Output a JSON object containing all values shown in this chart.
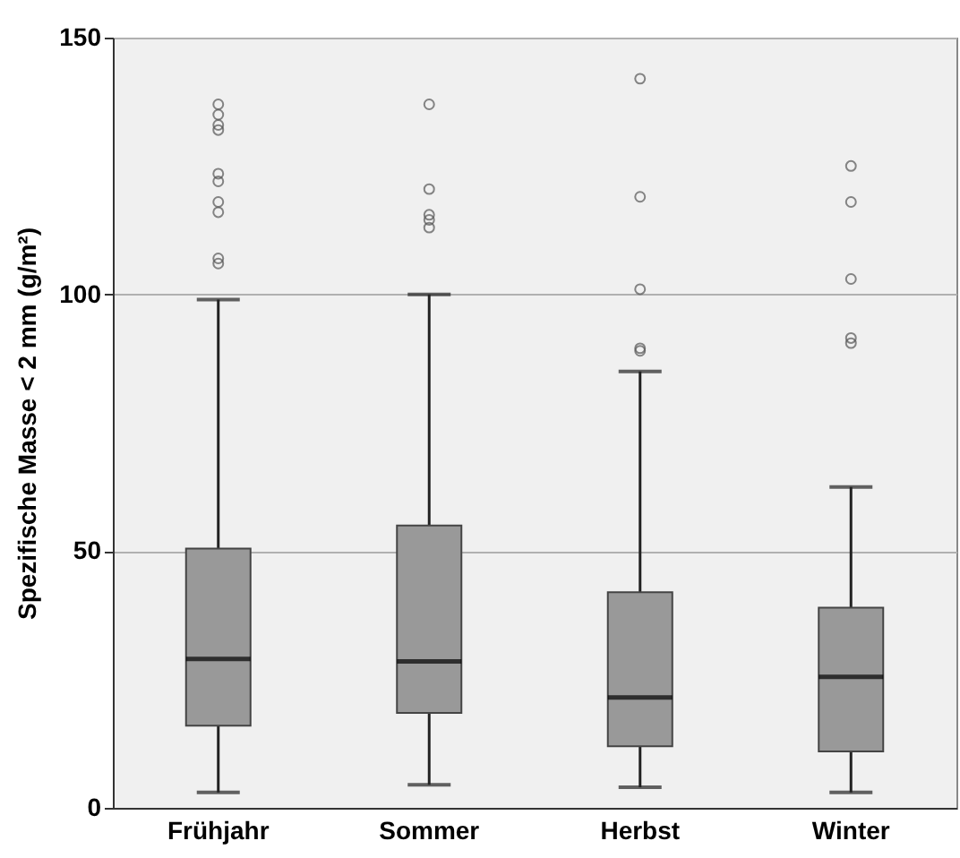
{
  "chart_data": {
    "type": "box",
    "ylabel": "Spezifische Masse < 2 mm (g/m²)",
    "categories": [
      "Frühjahr",
      "Sommer",
      "Herbst",
      "Winter"
    ],
    "color": "#999999",
    "boxes": [
      {
        "low": 3,
        "q1": 16,
        "median": 29,
        "q3": 50.5,
        "high": 99,
        "outliers": [
          137,
          135,
          133,
          132,
          123.5,
          122,
          118,
          116,
          107,
          106
        ]
      },
      {
        "low": 4.5,
        "q1": 18.5,
        "median": 28.5,
        "q3": 55,
        "high": 100,
        "outliers": [
          137,
          120.5,
          115.5,
          114.5,
          113
        ]
      },
      {
        "low": 4,
        "q1": 12,
        "median": 21.5,
        "q3": 42,
        "high": 85,
        "outliers": [
          142,
          119,
          101,
          89.5,
          89
        ]
      },
      {
        "low": 3,
        "q1": 11,
        "median": 25.5,
        "q3": 39,
        "high": 62.5,
        "outliers": [
          125,
          118,
          103,
          91.5,
          90.5
        ]
      }
    ],
    "ylim": [
      0,
      150
    ],
    "yticks": [
      0,
      50,
      100,
      150
    ],
    "grid": "y"
  }
}
